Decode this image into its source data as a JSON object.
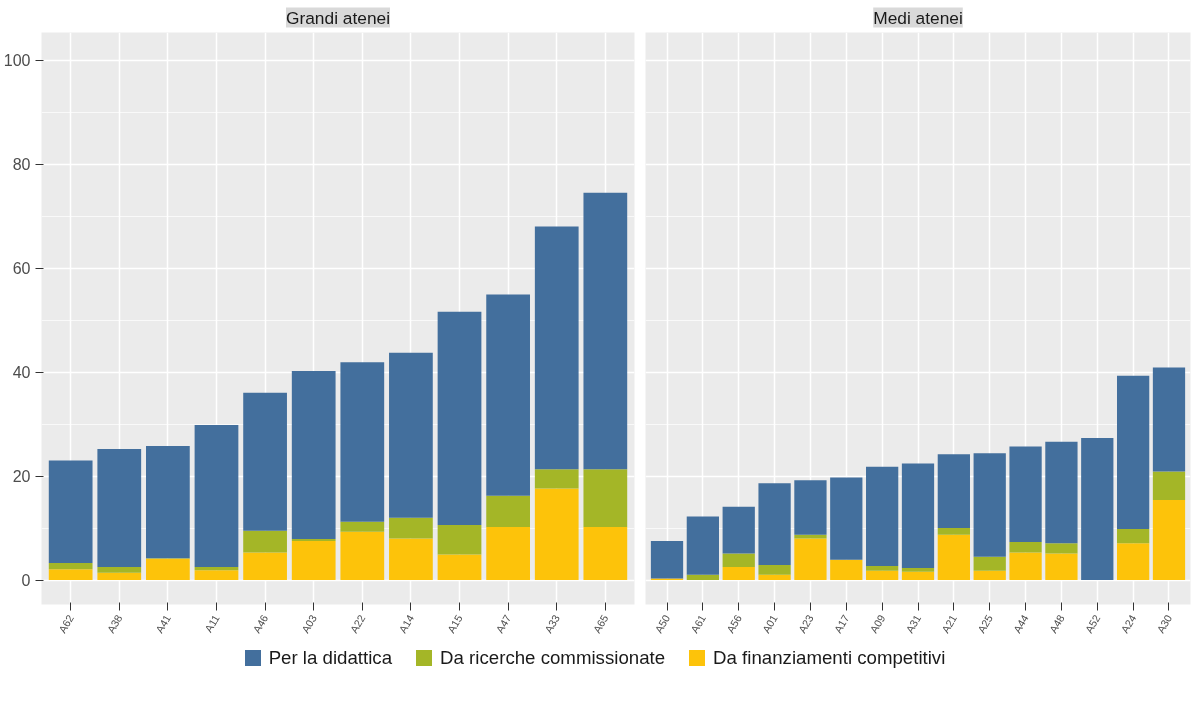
{
  "chart_data": [
    {
      "type": "bar",
      "stacked": true,
      "title": "Grandi atenei",
      "categories": [
        "A62",
        "A38",
        "A41",
        "A11",
        "A46",
        "A03",
        "A22",
        "A14",
        "A15",
        "A47",
        "A33",
        "A65"
      ],
      "series": [
        {
          "name": "Da finanziamenti competitivi",
          "color": "#fdc30a",
          "values": [
            2.1,
            1.4,
            4.1,
            1.9,
            5.3,
            7.5,
            9.3,
            8.0,
            4.9,
            10.2,
            17.6,
            10.2
          ]
        },
        {
          "name": "Da ricerche commissionate",
          "color": "#a4b627",
          "values": [
            1.2,
            1.1,
            0.1,
            0.6,
            4.2,
            0.4,
            1.9,
            4.0,
            5.7,
            6.0,
            3.7,
            11.1
          ]
        },
        {
          "name": "Per la didattica",
          "color": "#436f9d",
          "values": [
            19.7,
            22.7,
            21.6,
            27.3,
            26.5,
            32.3,
            30.7,
            31.7,
            41.0,
            38.7,
            46.7,
            53.2
          ]
        }
      ],
      "ylim": [
        -4.7,
        105.3
      ],
      "yticks": [
        0,
        20,
        40,
        60,
        80,
        100
      ],
      "grid": true,
      "legend": "bottom"
    },
    {
      "type": "bar",
      "stacked": true,
      "title": "Medi atenei",
      "categories": [
        "A50",
        "A61",
        "A56",
        "A01",
        "A23",
        "A17",
        "A09",
        "A31",
        "A21",
        "A25",
        "A44",
        "A48",
        "A52",
        "A24",
        "A30"
      ],
      "series": [
        {
          "color": "#fdc30a",
          "values": [
            0.3,
            0,
            2.5,
            1.0,
            8.0,
            3.9,
            1.8,
            1.6,
            8.7,
            1.8,
            5.3,
            5.1,
            0,
            7.1,
            15.4
          ]
        },
        {
          "color": "#a4b627",
          "values": [
            0,
            1.0,
            2.6,
            1.9,
            0.7,
            0,
            0.9,
            0.7,
            1.3,
            2.7,
            2.0,
            2.0,
            0,
            2.7,
            5.5
          ]
        },
        {
          "color": "#436f9d",
          "values": [
            7.2,
            11.2,
            9.0,
            15.7,
            10.5,
            15.8,
            19.1,
            20.1,
            14.2,
            19.9,
            18.4,
            19.5,
            27.3,
            29.5,
            20.0
          ]
        }
      ],
      "ylim": [
        -4.7,
        105.3
      ],
      "yticks": [
        0,
        20,
        40,
        60,
        80,
        100
      ],
      "grid": true,
      "tick_labels": "x"
    }
  ]
}
